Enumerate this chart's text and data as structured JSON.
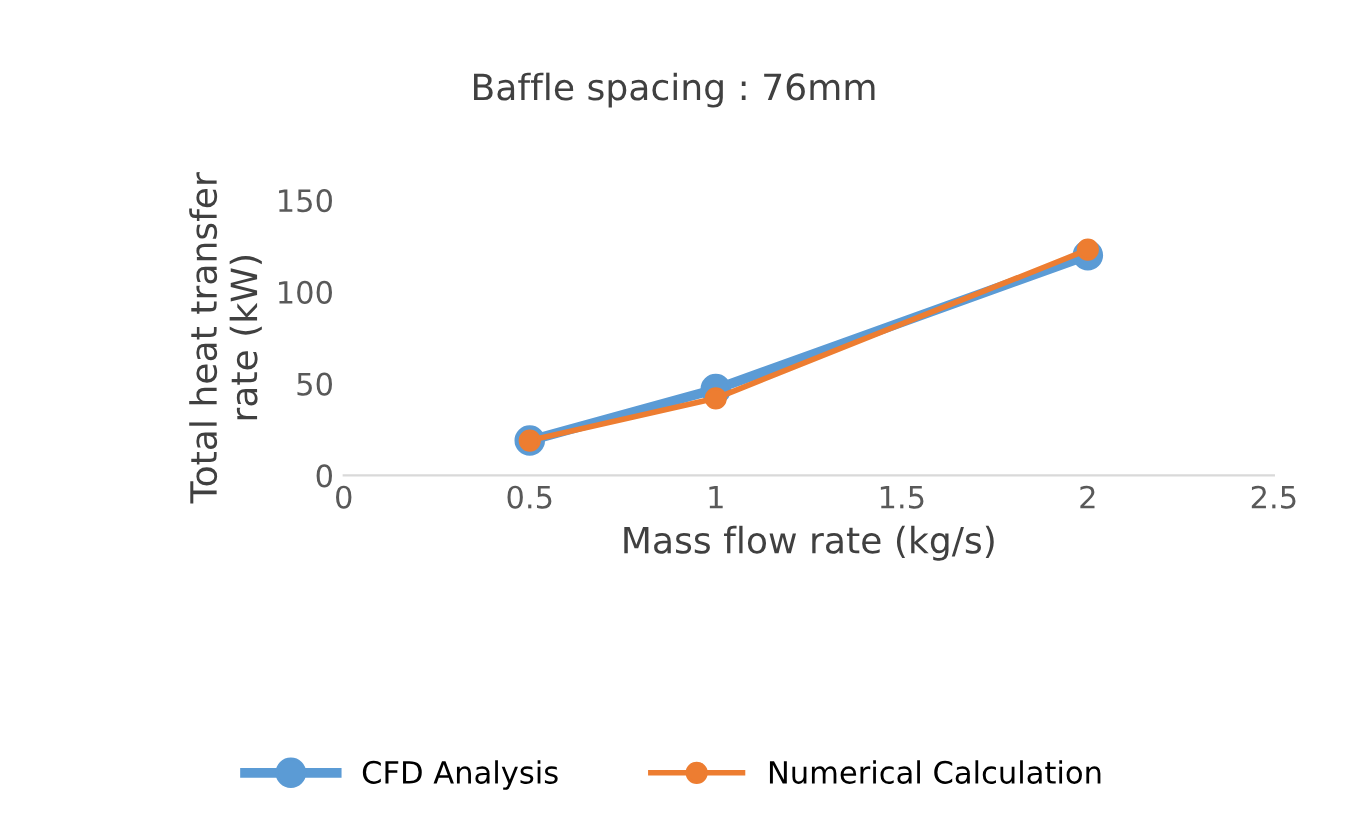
{
  "chart_data": {
    "type": "line",
    "title": "Baffle spacing : 76mm",
    "xlabel": "Mass flow rate (kg/s)",
    "ylabel": "Total heat transfer\nrate (kW)",
    "x": [
      0.5,
      1,
      2
    ],
    "series": [
      {
        "name": "CFD Analysis",
        "color": "#5b9bd5",
        "values": [
          19,
          47,
          120
        ]
      },
      {
        "name": "Numerical Calculation",
        "color": "#ed7d31",
        "values": [
          19,
          42,
          123
        ]
      }
    ],
    "xlim": [
      0,
      2.5
    ],
    "xticks": [
      0,
      0.5,
      1,
      1.5,
      2,
      2.5
    ],
    "ylim": [
      0,
      150
    ],
    "yticks": [
      0,
      50,
      100,
      150
    ],
    "grid": false,
    "legend": "bottom",
    "marker": "circle",
    "line_style": "solid"
  }
}
